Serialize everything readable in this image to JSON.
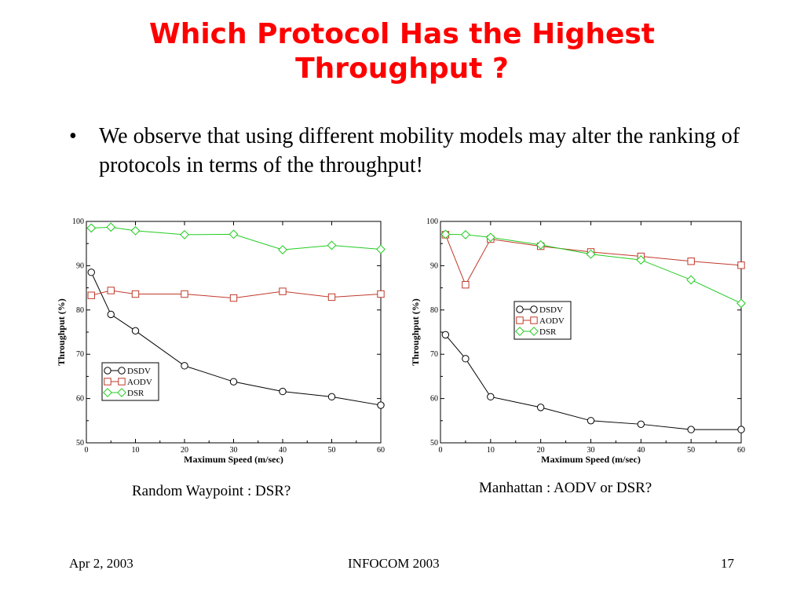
{
  "slide": {
    "title_line1": "Which Protocol Has the Highest",
    "title_line2": "Throughput ?",
    "bullet_symbol": "•",
    "bullet_text": "We observe that using different mobility models may alter the ranking of protocols in terms of the throughput!",
    "footer": {
      "date": "Apr 2, 2003",
      "conference": "INFOCOM 2003",
      "page": "17"
    },
    "title_color": "#ff0000"
  },
  "chart_data": [
    {
      "type": "line",
      "caption": "Random Waypoint  :  DSR?",
      "xlabel": "Maximum Speed (m/sec)",
      "ylabel": "Throughput (%)",
      "xlim": [
        0,
        60
      ],
      "ylim": [
        50,
        100
      ],
      "xticks": [
        0,
        10,
        20,
        30,
        40,
        50,
        60
      ],
      "yticks": [
        50,
        60,
        70,
        80,
        90,
        100
      ],
      "grid": false,
      "legend_position": "bottom-left",
      "x": [
        1,
        5,
        10,
        20,
        30,
        40,
        50,
        60
      ],
      "series": [
        {
          "name": "DSDV",
          "marker": "circle",
          "color": "#000000",
          "values": [
            88.5,
            79,
            75.3,
            67.4,
            63.8,
            61.6,
            60.4,
            58.5
          ]
        },
        {
          "name": "AODV",
          "marker": "square",
          "color": "#c0392b",
          "values": [
            83.3,
            84.4,
            83.6,
            83.6,
            82.7,
            84.2,
            82.9,
            83.6
          ]
        },
        {
          "name": "DSR",
          "marker": "diamond",
          "color": "#22cc22",
          "values": [
            98.5,
            98.7,
            97.9,
            97,
            97.1,
            93.6,
            94.6,
            93.7
          ]
        }
      ]
    },
    {
      "type": "line",
      "caption": "Manhattan  :  AODV or DSR?",
      "xlabel": "Maximum Speed (m/sec)",
      "ylabel": "Throughput (%)",
      "xlim": [
        0,
        60
      ],
      "ylim": [
        50,
        100
      ],
      "xticks": [
        0,
        10,
        20,
        30,
        40,
        50,
        60
      ],
      "yticks": [
        50,
        60,
        70,
        80,
        90,
        100
      ],
      "grid": false,
      "legend_position": "center-left",
      "x": [
        1,
        5,
        10,
        20,
        30,
        40,
        50,
        60
      ],
      "series": [
        {
          "name": "DSDV",
          "marker": "circle",
          "color": "#000000",
          "values": [
            74.4,
            69,
            60.4,
            58,
            55,
            54.2,
            53,
            53
          ]
        },
        {
          "name": "AODV",
          "marker": "square",
          "color": "#c0392b",
          "values": [
            97,
            85.7,
            96,
            94.4,
            93.1,
            92.1,
            91,
            90.1
          ]
        },
        {
          "name": "DSR",
          "marker": "diamond",
          "color": "#22cc22",
          "values": [
            97.1,
            97,
            96.4,
            94.7,
            92.6,
            91.3,
            86.8,
            81.5
          ]
        }
      ]
    }
  ]
}
